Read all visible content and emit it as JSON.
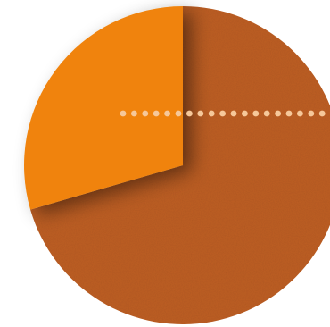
{
  "chart_data": {
    "type": "pie",
    "slices": [
      {
        "value": 70.5,
        "color": "#bf5f22"
      },
      {
        "value": 29.5,
        "color": "#f0830a"
      }
    ],
    "leader_dots_color": "#f6c89a",
    "legend": "none",
    "title": ""
  }
}
